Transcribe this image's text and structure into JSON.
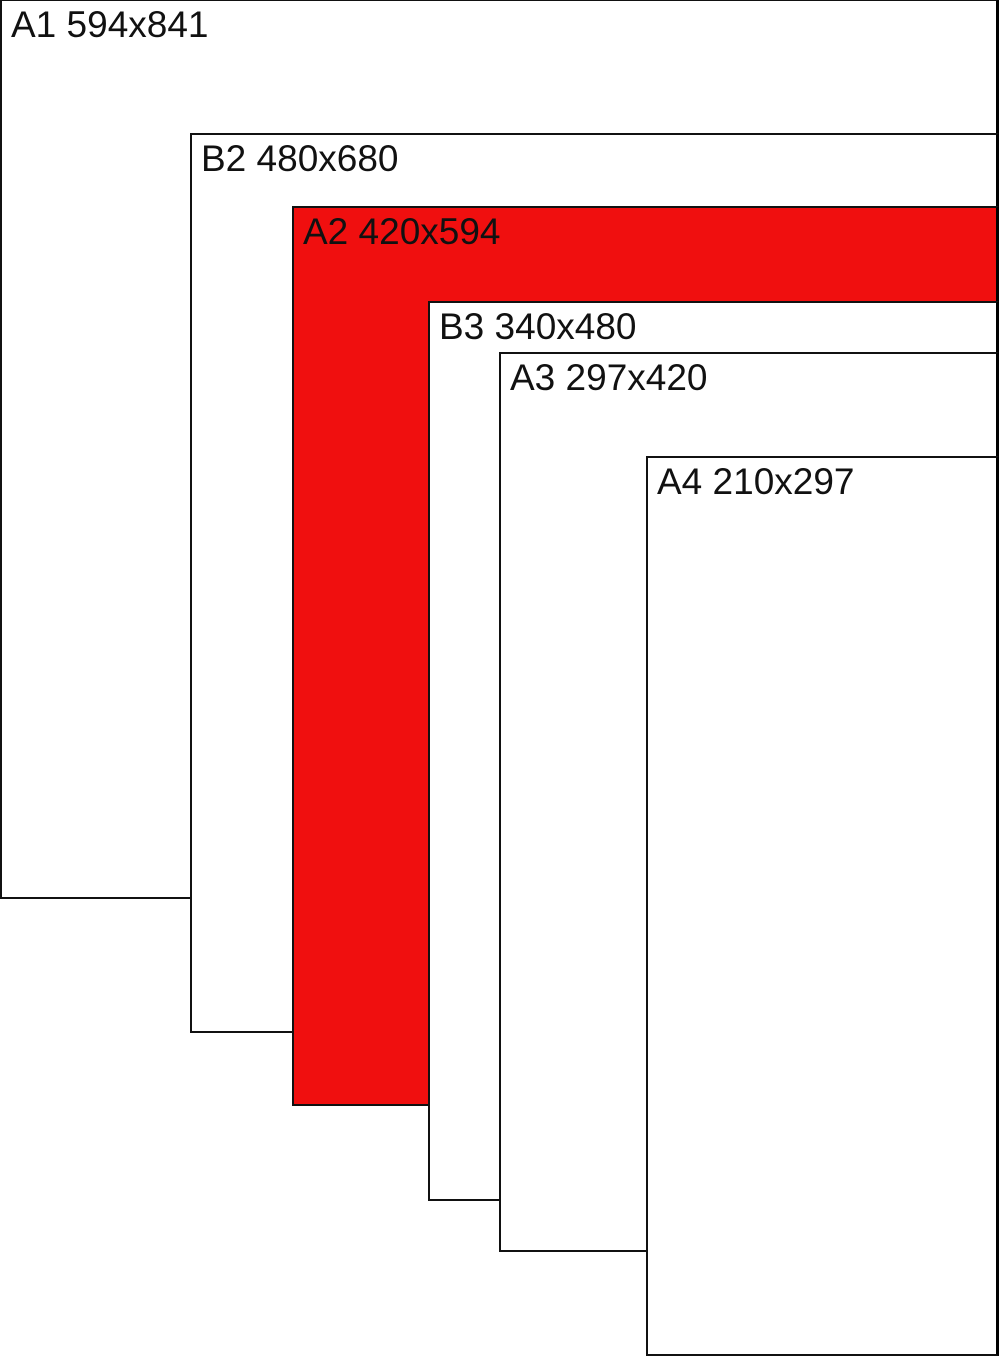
{
  "sheets": [
    {
      "label": "A1 594x841",
      "fill": "#ffffff"
    },
    {
      "label": "B2 480x680",
      "fill": "#ffffff"
    },
    {
      "label": "A2 420x594",
      "fill": "#f00f0f"
    },
    {
      "label": "B3 340x480",
      "fill": "#ffffff"
    },
    {
      "label": "A3 297x420",
      "fill": "#ffffff"
    },
    {
      "label": "A4 210x297",
      "fill": "#ffffff"
    }
  ]
}
